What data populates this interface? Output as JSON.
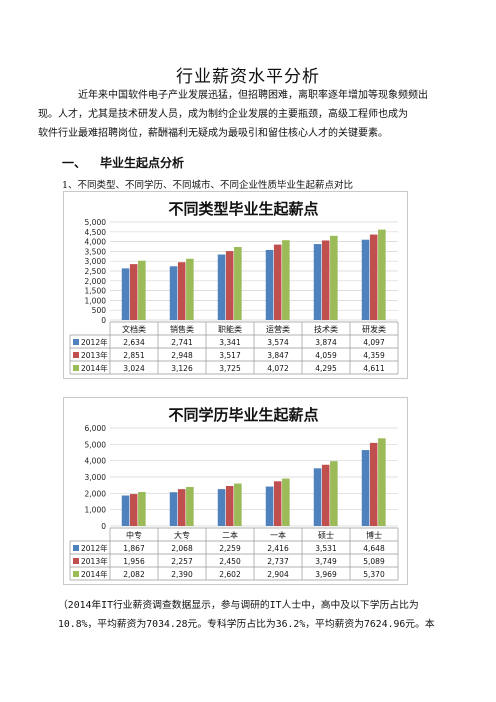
{
  "doc": {
    "title": "行业薪资水平分析",
    "intro_line1": "近年来中国软件电子产业发展迅猛，但招聘困难，离职率逐年增加等现象频频出",
    "intro_line2": "现。人才，尤其是技术研发人员，成为制约企业发展的主要瓶颈，高级工程师也成为",
    "intro_line3": "软件行业最难招聘岗位，薪酬福利无疑成为最吸引和留住核心人才的关键要素。",
    "section_num": "一、",
    "section_title": "毕业生起点分析",
    "sub_heading": "1、不同类型、不同学历、不同城市、不同企业性质毕业生起薪点对比",
    "foot_line1": "（2014年IT行业薪资调查数据显示，参与调研的IT人士中，高中及以下学历占比为",
    "foot_line2": "10.8%，平均薪资为7034.28元。专科学历占比为36.2%，平均薪资为7624.96元。本"
  },
  "colors": {
    "s2012": "#4f81bd",
    "s2013": "#c0504d",
    "s2014": "#9bbb59"
  },
  "chart_data": [
    {
      "type": "bar",
      "title": "不同类型毕业生起薪点",
      "categories": [
        "文档类",
        "销售类",
        "职能类",
        "运营类",
        "技术类",
        "研发类"
      ],
      "ylim": [
        0,
        5000
      ],
      "yticks": [
        "0",
        "500",
        "1,000",
        "1,500",
        "2,000",
        "2,500",
        "3,000",
        "3,500",
        "4,000",
        "4,500",
        "5,000"
      ],
      "series": [
        {
          "name": "2012年",
          "values": [
            2634,
            2741,
            3341,
            3574,
            3874,
            4097
          ],
          "labels": [
            "2,634",
            "2,741",
            "3,341",
            "3,574",
            "3,874",
            "4,097"
          ]
        },
        {
          "name": "2013年",
          "values": [
            2851,
            2948,
            3517,
            3847,
            4059,
            4359
          ],
          "labels": [
            "2,851",
            "2,948",
            "3,517",
            "3,847",
            "4,059",
            "4,359"
          ]
        },
        {
          "name": "2014年",
          "values": [
            3024,
            3126,
            3725,
            4072,
            4295,
            4611
          ],
          "labels": [
            "3,024",
            "3,126",
            "3,725",
            "4,072",
            "4,295",
            "4,611"
          ]
        }
      ],
      "grid": true,
      "legend": "table-bottom"
    },
    {
      "type": "bar",
      "title": "不同学历毕业生起薪点",
      "categories": [
        "中专",
        "大专",
        "二本",
        "一本",
        "硕士",
        "博士"
      ],
      "ylim": [
        0,
        6000
      ],
      "yticks": [
        "0",
        "1,000",
        "2,000",
        "3,000",
        "4,000",
        "5,000",
        "6,000"
      ],
      "series": [
        {
          "name": "2012年",
          "values": [
            1867,
            2068,
            2259,
            2416,
            3531,
            4648
          ],
          "labels": [
            "1,867",
            "2,068",
            "2,259",
            "2,416",
            "3,531",
            "4,648"
          ]
        },
        {
          "name": "2013年",
          "values": [
            1956,
            2257,
            2450,
            2737,
            3749,
            5089
          ],
          "labels": [
            "1,956",
            "2,257",
            "2,450",
            "2,737",
            "3,749",
            "5,089"
          ]
        },
        {
          "name": "2014年",
          "values": [
            2082,
            2390,
            2602,
            2904,
            3969,
            5370
          ],
          "labels": [
            "2,082",
            "2,390",
            "2,602",
            "2,904",
            "3,969",
            "5,370"
          ]
        }
      ],
      "grid": true,
      "legend": "table-bottom"
    }
  ]
}
